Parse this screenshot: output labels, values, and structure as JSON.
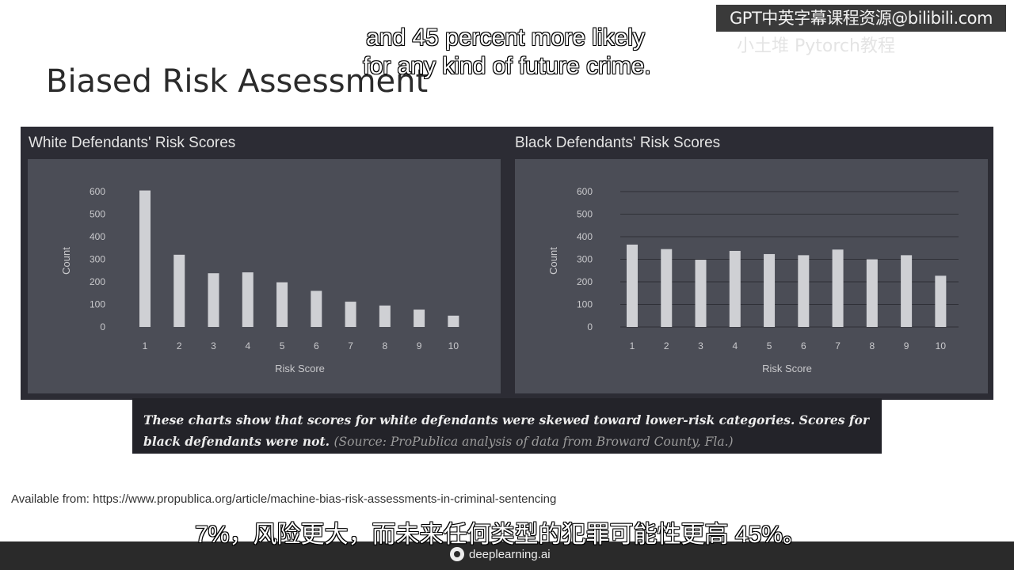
{
  "slide": {
    "title": "Biased Risk Assessment",
    "caption_main": "These charts show that scores for white defendants were skewed toward lower-risk categories. Scores for black defendants were not.",
    "caption_source": "(Source: ProPublica analysis of data from Broward County, Fla.)",
    "available_from": "Available from: https://www.propublica.org/article/machine-bias-risk-assessments-in-criminal-sentencing"
  },
  "subtitles": {
    "en_line1": "and 45 percent more likely",
    "en_line2": "for any kind of future crime.",
    "zh": "7%，风险更大，而未来任何类型的犯罪可能性更高 45%。"
  },
  "watermark": {
    "text": "GPT中英字幕课程资源@bilibili.com",
    "ghost": "小土堆 Pytorch教程"
  },
  "footer": {
    "brand": "deeplearning.ai"
  },
  "colors": {
    "panel": "#4b4d56",
    "bar": "#cfd0d4",
    "grid": "#2f3037",
    "frame": "#2c2c34"
  },
  "chart_data": [
    {
      "type": "bar",
      "title": "White Defendants' Risk Scores",
      "xlabel": "Risk Score",
      "ylabel": "Count",
      "categories": [
        "1",
        "2",
        "3",
        "4",
        "5",
        "6",
        "7",
        "8",
        "9",
        "10"
      ],
      "values": [
        605,
        320,
        238,
        242,
        198,
        160,
        112,
        95,
        77,
        50
      ],
      "ylim": [
        0,
        600
      ],
      "yticks": [
        "0",
        "100",
        "200",
        "300",
        "400",
        "500",
        "600"
      ],
      "grid": false
    },
    {
      "type": "bar",
      "title": "Black Defendants' Risk Scores",
      "xlabel": "Risk Score",
      "ylabel": "Count",
      "categories": [
        "1",
        "2",
        "3",
        "4",
        "5",
        "6",
        "7",
        "8",
        "9",
        "10"
      ],
      "values": [
        365,
        345,
        298,
        337,
        323,
        318,
        343,
        300,
        318,
        227
      ],
      "ylim": [
        0,
        600
      ],
      "yticks": [
        "0",
        "100",
        "200",
        "300",
        "400",
        "500",
        "600"
      ],
      "grid": true
    }
  ]
}
